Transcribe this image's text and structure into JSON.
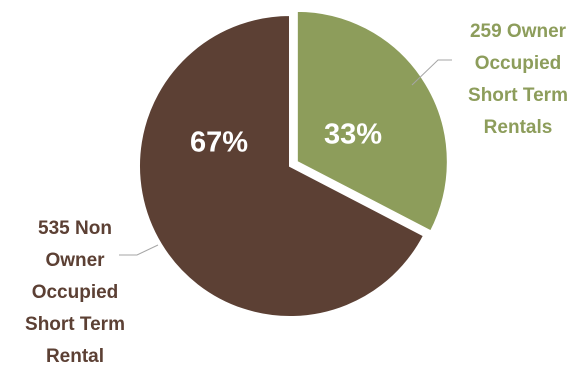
{
  "chart_data": {
    "type": "pie",
    "title": "",
    "slices": [
      {
        "label_lines": [
          "259 Owner",
          "Occupied",
          "Short Term",
          "Rentals"
        ],
        "value": 259,
        "percent_label": "33%",
        "color": "#8d9d5b",
        "label_color": "#8d9d5b",
        "exploded": true
      },
      {
        "label_lines": [
          "535 Non",
          "Owner",
          "Occupied",
          "Short Term",
          "Rental"
        ],
        "value": 535,
        "percent_label": "67%",
        "color": "#5c4034",
        "label_color": "#5c4034",
        "exploded": false
      }
    ],
    "legend": "none",
    "leader_line_color": "#a6a6a6"
  }
}
